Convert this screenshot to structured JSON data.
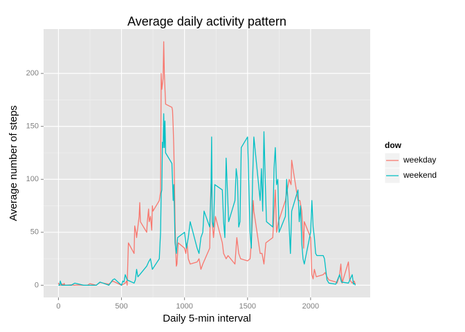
{
  "chart_data": {
    "type": "line",
    "title": "Average daily activity pattern",
    "x_label": "Daily 5-min interval",
    "y_label": "Average number of steps",
    "legend_title": "dow",
    "xlim": [
      -117.75,
      2472.75
    ],
    "ylim": [
      -11.5,
      241.9
    ],
    "xticks": [
      0,
      500,
      1000,
      1500,
      2000
    ],
    "yticks": [
      0,
      50,
      100,
      150,
      200
    ],
    "grid": true,
    "minor_grid": true,
    "legend_position": "right",
    "series": [
      {
        "name": "weekday",
        "color": "#F8766D",
        "x": [
          0,
          5,
          10,
          15,
          20,
          25,
          30,
          35,
          40,
          45,
          50,
          55,
          100,
          105,
          110,
          115,
          120,
          150,
          200,
          230,
          250,
          300,
          330,
          400,
          430,
          500,
          530,
          540,
          545,
          550,
          555,
          600,
          605,
          615,
          620,
          630,
          640,
          645,
          650,
          700,
          705,
          715,
          720,
          730,
          740,
          745,
          750,
          800,
          810,
          815,
          820,
          825,
          830,
          835,
          840,
          845,
          850,
          900,
          905,
          910,
          915,
          920,
          925,
          930,
          935,
          940,
          950,
          1000,
          1010,
          1020,
          1030,
          1045,
          1100,
          1115,
          1130,
          1145,
          1200,
          1205,
          1210,
          1215,
          1220,
          1230,
          1245,
          1300,
          1310,
          1330,
          1345,
          1400,
          1415,
          1430,
          1445,
          1500,
          1520,
          1530,
          1545,
          1550,
          1600,
          1615,
          1630,
          1645,
          1700,
          1720,
          1730,
          1745,
          1800,
          1815,
          1830,
          1845,
          1850,
          1900,
          1915,
          1930,
          1945,
          1950,
          2000,
          2010,
          2020,
          2030,
          2045,
          2100,
          2115,
          2130,
          2145,
          2200,
          2210,
          2230,
          2240,
          2250,
          2300,
          2310,
          2330,
          2345,
          2355
        ],
        "values": [
          2.3,
          0.5,
          0.2,
          0.2,
          0.1,
          1.5,
          0.6,
          1,
          0,
          1.8,
          0.4,
          0,
          0.4,
          0,
          0.2,
          0.4,
          0,
          0.3,
          0,
          0,
          1.5,
          0,
          2.6,
          1,
          4,
          0,
          2,
          4,
          0,
          20,
          40,
          30,
          56,
          50,
          45,
          55,
          65,
          78,
          60,
          50,
          60,
          72,
          60,
          65,
          52,
          75,
          70,
          80,
          88,
          200,
          185,
          190,
          195,
          230,
          200,
          185,
          171,
          168,
          165,
          150,
          130,
          100,
          60,
          35,
          18,
          20,
          40,
          35,
          30,
          40,
          25,
          20,
          22,
          25,
          15,
          20,
          35,
          75,
          95,
          100,
          60,
          45,
          65,
          40,
          30,
          25,
          28,
          20,
          45,
          30,
          25,
          23,
          25,
          40,
          80,
          70,
          30,
          30,
          20,
          40,
          45,
          90,
          50,
          60,
          80,
          90,
          100,
          95,
          118,
          80,
          80,
          70,
          35,
          60,
          45,
          10,
          6,
          15,
          8,
          10,
          12,
          8,
          5,
          3,
          2,
          10,
          20,
          2,
          22,
          5,
          2,
          4,
          1
        ]
      },
      {
        "name": "weekend",
        "color": "#00BFC4",
        "x": [
          0,
          10,
          15,
          25,
          100,
          130,
          200,
          300,
          330,
          400,
          430,
          445,
          500,
          510,
          520,
          530,
          545,
          600,
          610,
          620,
          630,
          645,
          700,
          715,
          730,
          745,
          800,
          810,
          815,
          820,
          825,
          830,
          835,
          840,
          845,
          850,
          900,
          905,
          910,
          915,
          920,
          925,
          935,
          945,
          1000,
          1015,
          1030,
          1045,
          1100,
          1115,
          1130,
          1145,
          1155,
          1200,
          1210,
          1215,
          1220,
          1230,
          1240,
          1300,
          1310,
          1320,
          1330,
          1340,
          1350,
          1400,
          1410,
          1420,
          1430,
          1440,
          1450,
          1500,
          1510,
          1520,
          1530,
          1540,
          1550,
          1600,
          1610,
          1620,
          1630,
          1640,
          1650,
          1700,
          1710,
          1720,
          1730,
          1740,
          1750,
          1800,
          1810,
          1820,
          1830,
          1840,
          1850,
          1900,
          1910,
          1920,
          1930,
          1940,
          1950,
          2000,
          2010,
          2020,
          2030,
          2040,
          2050,
          2100,
          2110,
          2120,
          2130,
          2145,
          2200,
          2230,
          2245,
          2300,
          2330,
          2340,
          2345,
          2355
        ],
        "values": [
          0,
          0,
          4,
          0,
          0,
          2,
          0,
          0,
          3,
          0,
          5,
          6,
          0,
          4,
          3,
          10,
          5,
          2,
          5,
          15,
          8,
          10,
          18,
          22,
          25,
          15,
          25,
          50,
          87,
          90,
          135,
          130,
          162,
          130,
          155,
          125,
          115,
          98,
          80,
          95,
          70,
          40,
          30,
          45,
          50,
          35,
          45,
          60,
          35,
          30,
          45,
          50,
          70,
          55,
          90,
          140,
          60,
          55,
          95,
          90,
          60,
          45,
          120,
          90,
          60,
          80,
          110,
          100,
          55,
          60,
          130,
          140,
          95,
          50,
          35,
          100,
          140,
          80,
          110,
          70,
          145,
          100,
          60,
          55,
          110,
          130,
          95,
          100,
          50,
          65,
          100,
          80,
          55,
          30,
          70,
          90,
          60,
          75,
          40,
          25,
          20,
          50,
          80,
          55,
          45,
          30,
          28,
          28,
          25,
          15,
          5,
          2,
          1,
          10,
          3,
          2,
          10,
          1,
          2,
          0
        ]
      }
    ]
  }
}
